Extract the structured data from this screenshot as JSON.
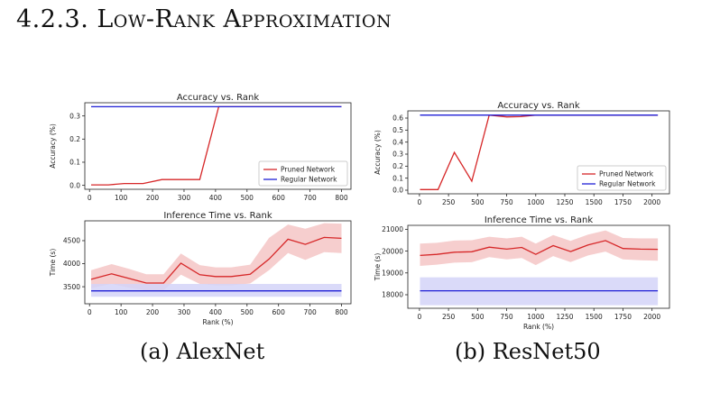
{
  "section_heading": "4.2.3. Low-Rank Approximation",
  "subfigures": [
    {
      "caption": "(a) AlexNet",
      "accuracy_chart": {
        "type": "line",
        "title": "Accuracy vs. Rank",
        "xlabel": "",
        "ylabel": "Accuracy (%)",
        "xlim": [
          -15,
          830
        ],
        "ylim": [
          -0.017,
          0.357
        ],
        "xticks": [
          "0",
          "100",
          "200",
          "300",
          "400",
          "500",
          "600",
          "700",
          "800"
        ],
        "yticks": [
          "0.0",
          "0.1",
          "0.2",
          "0.3"
        ],
        "legend": {
          "position": "lower-right",
          "entries": [
            "Pruned Network",
            "Regular Network"
          ]
        },
        "series": [
          {
            "name": "Pruned Network",
            "color": "#d62728",
            "x": [
              5,
              60,
              110,
              170,
              230,
              290,
              350,
              410,
              450,
              500,
              550,
              600,
              650,
              700,
              750,
              800
            ],
            "y": [
              0.002,
              0.002,
              0.008,
              0.008,
              0.025,
              0.025,
              0.025,
              0.34,
              0.34,
              0.34,
              0.34,
              0.34,
              0.34,
              0.34,
              0.34,
              0.34
            ]
          },
          {
            "name": "Regular Network",
            "color": "#1f1fd6",
            "x": [
              5,
              800
            ],
            "y": [
              0.34,
              0.34
            ]
          }
        ]
      },
      "time_chart": {
        "type": "line",
        "title": "Inference Time vs. Rank",
        "xlabel": "Rank (%)",
        "ylabel": "Time (s)",
        "xlim": [
          -15,
          830
        ],
        "ylim": [
          3130,
          4930
        ],
        "xticks": [
          "0",
          "100",
          "200",
          "300",
          "400",
          "500",
          "600",
          "700",
          "800"
        ],
        "yticks": [
          "3500",
          "4000",
          "4500"
        ],
        "series": [
          {
            "name": "Pruned Network",
            "color": "#d62728",
            "band_color": "#f4c6c6",
            "x": [
              5,
              70,
              125,
              180,
              235,
              290,
              350,
              400,
              450,
              510,
              570,
              630,
              685,
              745,
              800
            ],
            "y": [
              3660,
              3780,
              3680,
              3580,
              3580,
              4010,
              3760,
              3720,
              3720,
              3770,
              4100,
              4530,
              4420,
              4570,
              4550
            ],
            "lower": [
              3470,
              3560,
              3480,
              3420,
              3420,
              3760,
              3560,
              3530,
              3530,
              3570,
              3860,
              4230,
              4080,
              4250,
              4230
            ],
            "upper": [
              3860,
              3990,
              3890,
              3770,
              3770,
              4220,
              3970,
              3920,
              3920,
              3980,
              4560,
              4850,
              4760,
              4880,
              4870
            ]
          },
          {
            "name": "Regular Network",
            "color": "#1f1fd6",
            "band_color": "#d3d3f8",
            "x": [
              5,
              800
            ],
            "y": [
              3410,
              3410
            ],
            "lower": [
              3280,
              3280
            ],
            "upper": [
              3560,
              3560
            ]
          }
        ]
      }
    },
    {
      "caption": "(b) ResNet50",
      "accuracy_chart": {
        "type": "line",
        "title": "Accuracy vs. Rank",
        "xlabel": "",
        "ylabel": "Accuracy (%)",
        "xlim": [
          -100,
          2150
        ],
        "ylim": [
          -0.03,
          0.66
        ],
        "xticks": [
          "0",
          "250",
          "500",
          "750",
          "1000",
          "1250",
          "1500",
          "1750",
          "2000"
        ],
        "yticks": [
          "0.0",
          "0.1",
          "0.2",
          "0.3",
          "0.4",
          "0.5",
          "0.6"
        ],
        "legend": {
          "position": "lower-right",
          "entries": [
            "Pruned Network",
            "Regular Network"
          ]
        },
        "series": [
          {
            "name": "Pruned Network",
            "color": "#d62728",
            "x": [
              5,
              160,
              300,
              450,
              600,
              750,
              870,
              1000,
              1150,
              1300,
              1450,
              1600,
              1750,
              1900,
              2050
            ],
            "y": [
              0.005,
              0.005,
              0.315,
              0.075,
              0.625,
              0.61,
              0.612,
              0.625,
              0.625,
              0.625,
              0.625,
              0.625,
              0.625,
              0.625,
              0.625
            ]
          },
          {
            "name": "Regular Network",
            "color": "#1f1fd6",
            "x": [
              5,
              2050
            ],
            "y": [
              0.625,
              0.625
            ]
          }
        ]
      },
      "time_chart": {
        "type": "line",
        "title": "Inference Time vs. Rank",
        "xlabel": "Rank (%)",
        "ylabel": "Time (s)",
        "xlim": [
          -100,
          2150
        ],
        "ylim": [
          17380,
          21180
        ],
        "xticks": [
          "0",
          "250",
          "500",
          "750",
          "1000",
          "1250",
          "1500",
          "1750",
          "2000"
        ],
        "yticks": [
          "18000",
          "19000",
          "20000",
          "21000"
        ],
        "series": [
          {
            "name": "Pruned Network",
            "color": "#d62728",
            "band_color": "#f4c6c6",
            "x": [
              5,
              150,
              300,
              450,
              600,
              750,
              880,
              1000,
              1150,
              1300,
              1450,
              1600,
              1750,
              1900,
              2050
            ],
            "y": [
              19800,
              19850,
              19950,
              19970,
              20180,
              20090,
              20170,
              19850,
              20250,
              19980,
              20280,
              20480,
              20120,
              20090,
              20080
            ],
            "lower": [
              19320,
              19380,
              19470,
              19490,
              19720,
              19620,
              19680,
              19360,
              19770,
              19500,
              19800,
              19980,
              19620,
              19580,
              19560
            ],
            "upper": [
              20340,
              20380,
              20480,
              20500,
              20660,
              20580,
              20660,
              20340,
              20740,
              20470,
              20760,
              20950,
              20600,
              20580,
              20580
            ]
          },
          {
            "name": "Regular Network",
            "color": "#1f1fd6",
            "band_color": "#d3d3f8",
            "x": [
              5,
              2050
            ],
            "y": [
              18180,
              18180
            ],
            "lower": [
              17520,
              17520
            ],
            "upper": [
              18800,
              18800
            ]
          }
        ]
      }
    }
  ]
}
